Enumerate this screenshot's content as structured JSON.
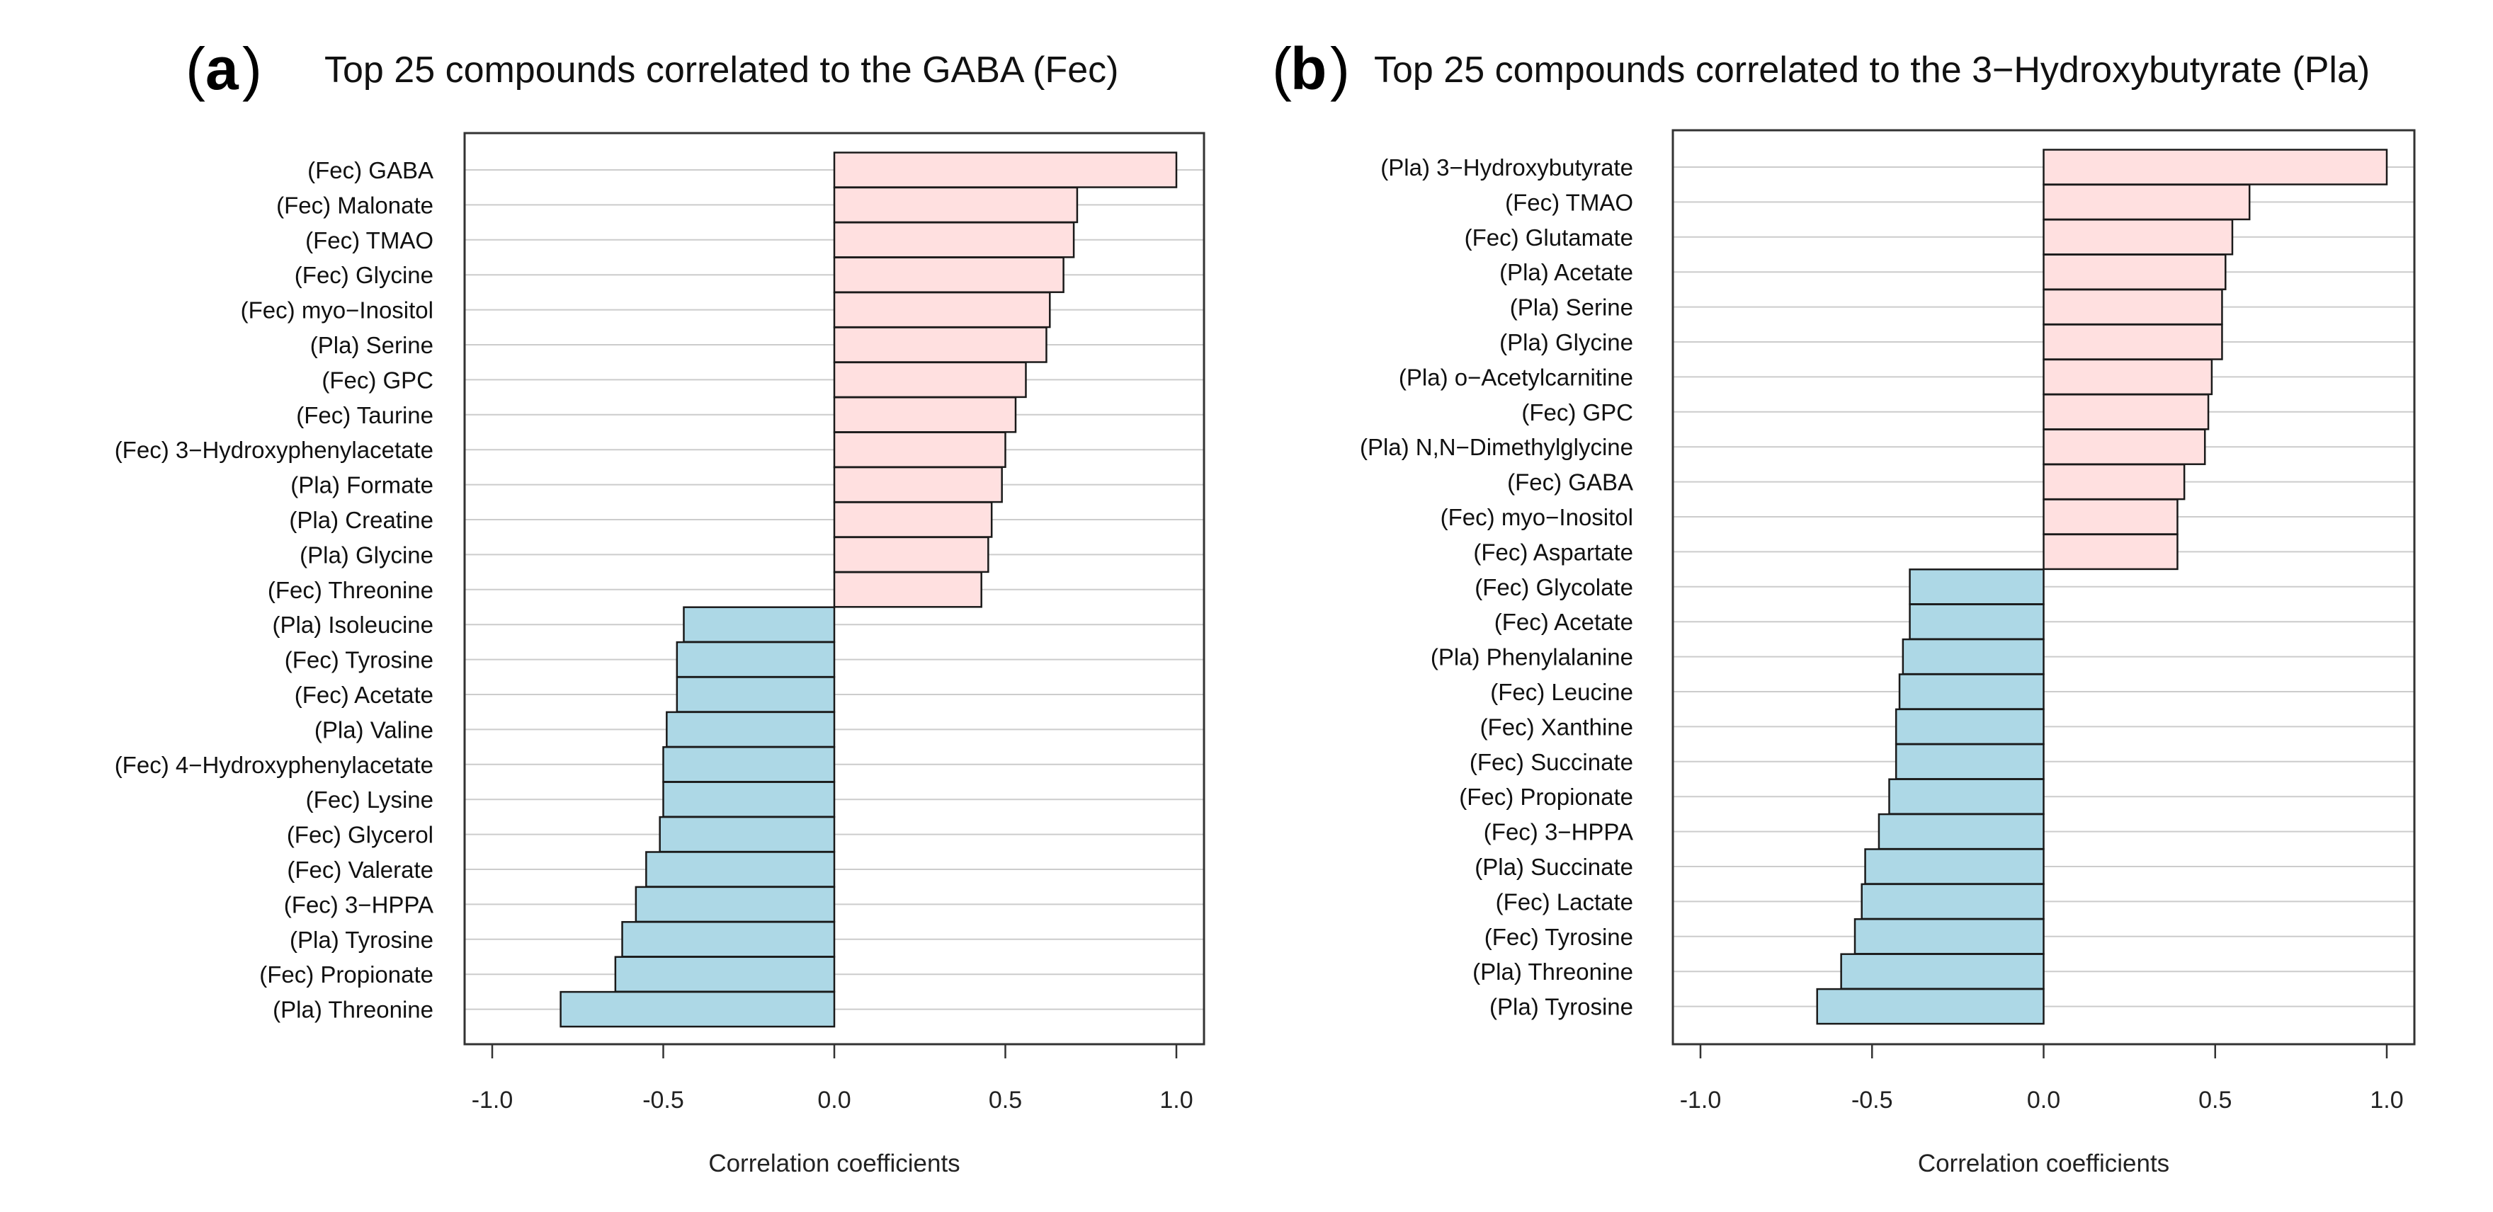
{
  "figure": {
    "panels": [
      {
        "letter": "a",
        "title": "Top 25 compounds correlated to the GABA (Fec)"
      },
      {
        "letter": "b",
        "title": "Top 25 compounds correlated to the 3−Hydroxybutyrate (Pla)"
      }
    ],
    "colors": {
      "positive": "#ffe0e0",
      "negative": "#add8e6",
      "bar_stroke": "#1a1a1a",
      "grid": "#cccccc",
      "axis": "#333333"
    }
  },
  "chart_data": [
    {
      "type": "bar",
      "orientation": "horizontal",
      "title": "Top 25 compounds correlated to the GABA (Fec)",
      "xlabel": "Correlation coefficients",
      "ylabel": "",
      "xlim": [
        -1.0,
        1.0
      ],
      "xticks": [
        "-1.0",
        "-0.5",
        "0.0",
        "0.5",
        "1.0"
      ],
      "grid": true,
      "categories": [
        "(Fec) GABA",
        "(Fec) Malonate",
        "(Fec) TMAO",
        "(Fec) Glycine",
        "(Fec) myo−Inositol",
        "(Pla) Serine",
        "(Fec) GPC",
        "(Fec) Taurine",
        "(Fec) 3−Hydroxyphenylacetate",
        "(Pla) Formate",
        "(Pla) Creatine",
        "(Pla) Glycine",
        "(Fec) Threonine",
        "(Pla) Isoleucine",
        "(Fec) Tyrosine",
        "(Fec) Acetate",
        "(Pla) Valine",
        "(Fec) 4−Hydroxyphenylacetate",
        "(Fec) Lysine",
        "(Fec) Glycerol",
        "(Fec) Valerate",
        "(Fec) 3−HPPA",
        "(Pla) Tyrosine",
        "(Fec) Propionate",
        "(Pla) Threonine"
      ],
      "values": [
        1.0,
        0.71,
        0.7,
        0.67,
        0.63,
        0.62,
        0.56,
        0.53,
        0.5,
        0.49,
        0.46,
        0.45,
        0.43,
        -0.44,
        -0.46,
        -0.46,
        -0.49,
        -0.5,
        -0.5,
        -0.51,
        -0.55,
        -0.58,
        -0.62,
        -0.64,
        -0.8
      ]
    },
    {
      "type": "bar",
      "orientation": "horizontal",
      "title": "Top 25 compounds correlated to the 3−Hydroxybutyrate (Pla)",
      "xlabel": "Correlation coefficients",
      "ylabel": "",
      "xlim": [
        -1.0,
        1.0
      ],
      "xticks": [
        "-1.0",
        "-0.5",
        "0.0",
        "0.5",
        "1.0"
      ],
      "grid": true,
      "categories": [
        "(Pla) 3−Hydroxybutyrate",
        "(Fec) TMAO",
        "(Fec) Glutamate",
        "(Pla) Acetate",
        "(Pla) Serine",
        "(Pla) Glycine",
        "(Pla) o−Acetylcarnitine",
        "(Fec) GPC",
        "(Pla) N,N−Dimethylglycine",
        "(Fec) GABA",
        "(Fec) myo−Inositol",
        "(Fec) Aspartate",
        "(Fec) Glycolate",
        "(Fec) Acetate",
        "(Pla) Phenylalanine",
        "(Fec) Leucine",
        "(Fec) Xanthine",
        "(Fec) Succinate",
        "(Fec) Propionate",
        "(Fec) 3−HPPA",
        "(Pla) Succinate",
        "(Fec) Lactate",
        "(Fec) Tyrosine",
        "(Pla) Threonine",
        "(Pla) Tyrosine"
      ],
      "values": [
        1.0,
        0.6,
        0.55,
        0.53,
        0.52,
        0.52,
        0.49,
        0.48,
        0.47,
        0.41,
        0.39,
        0.39,
        -0.39,
        -0.39,
        -0.41,
        -0.42,
        -0.43,
        -0.43,
        -0.45,
        -0.48,
        -0.52,
        -0.53,
        -0.55,
        -0.59,
        -0.66
      ]
    }
  ]
}
